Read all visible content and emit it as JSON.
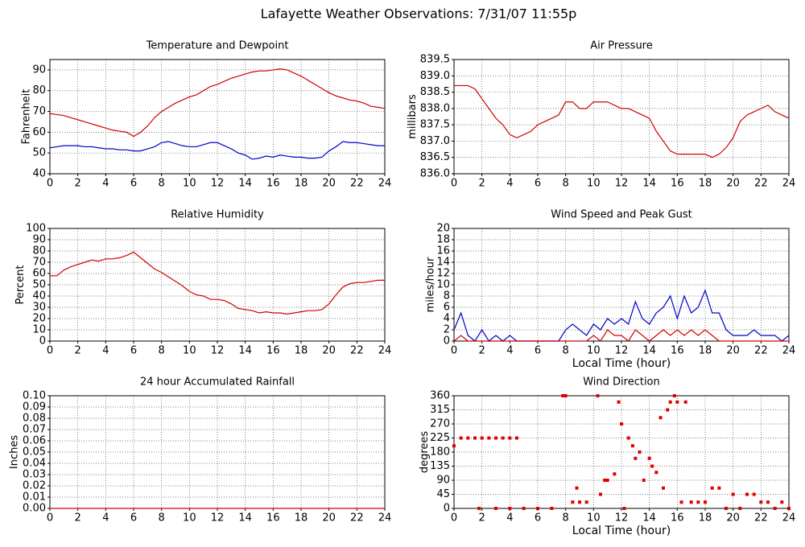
{
  "title": "Lafayette Weather Observations: 7/31/07 11:55p",
  "chart_data": [
    {
      "type": "line",
      "title": "Temperature and Dewpoint",
      "y_label": "Fahrenheit",
      "grid": true,
      "x": [
        0,
        0.5,
        1,
        1.5,
        2,
        2.5,
        3,
        3.5,
        4,
        4.5,
        5,
        5.5,
        6,
        6.5,
        7,
        7.5,
        8,
        8.5,
        9,
        9.5,
        10,
        10.5,
        11,
        11.5,
        12,
        12.5,
        13,
        13.5,
        14,
        14.5,
        15,
        15.5,
        16,
        16.5,
        17,
        17.5,
        18,
        18.5,
        19,
        19.5,
        20,
        20.5,
        21,
        21.5,
        22,
        22.5,
        23,
        23.5,
        24
      ],
      "xlim": [
        0,
        24
      ],
      "xticks": [
        0,
        2,
        4,
        6,
        8,
        10,
        12,
        14,
        16,
        18,
        20,
        22,
        24
      ],
      "ylim": [
        40,
        95
      ],
      "yticks": [
        40,
        50,
        60,
        70,
        80,
        90
      ],
      "series": [
        {
          "color": "#d00000",
          "values": [
            69,
            68.5,
            68,
            67,
            66,
            65,
            64,
            63,
            62,
            61,
            60.5,
            60,
            58,
            60,
            63,
            67,
            70,
            72,
            74,
            75.5,
            77,
            78,
            80,
            82,
            83,
            84.5,
            86,
            87,
            88,
            89,
            89.5,
            89.5,
            90,
            90.5,
            90,
            88.5,
            87,
            85,
            83,
            81,
            79,
            77.5,
            76.5,
            75.5,
            75,
            74,
            72.5,
            72,
            71.5
          ]
        },
        {
          "color": "#0000c8",
          "values": [
            52.5,
            53,
            53.5,
            53.5,
            53.5,
            53,
            53,
            52.5,
            52,
            52,
            51.5,
            51.5,
            51,
            51,
            52,
            53,
            55,
            55.5,
            54.5,
            53.5,
            53,
            53,
            54,
            55,
            55,
            53.5,
            52,
            50,
            49,
            47,
            47.5,
            48.5,
            48,
            49,
            48.5,
            48,
            48,
            47.5,
            47.5,
            48,
            51,
            53,
            55.5,
            55,
            55,
            54.5,
            54,
            53.5,
            53.5
          ]
        }
      ]
    },
    {
      "type": "line",
      "title": "Air Pressure",
      "y_label": "millibars",
      "grid": true,
      "x": [
        0,
        0.5,
        1,
        1.5,
        2,
        2.5,
        3,
        3.5,
        4,
        4.5,
        5,
        5.5,
        6,
        6.5,
        7,
        7.5,
        8,
        8.5,
        9,
        9.5,
        10,
        10.5,
        11,
        11.5,
        12,
        12.5,
        13,
        13.5,
        14,
        14.5,
        15,
        15.5,
        16,
        16.5,
        17,
        17.5,
        18,
        18.5,
        19,
        19.5,
        20,
        20.5,
        21,
        21.5,
        22,
        22.5,
        23,
        23.5,
        24
      ],
      "xlim": [
        0,
        24
      ],
      "xticks": [
        0,
        2,
        4,
        6,
        8,
        10,
        12,
        14,
        16,
        18,
        20,
        22,
        24
      ],
      "ylim": [
        836,
        839.5
      ],
      "yticks": [
        {
          "value": 836,
          "label": "836.0"
        },
        836.5,
        {
          "value": 837,
          "label": "837.0"
        },
        837.5,
        {
          "value": 838,
          "label": "838.0"
        },
        838.5,
        {
          "value": 839,
          "label": "839.0"
        },
        839.5
      ],
      "series": [
        {
          "color": "#d00000",
          "values": [
            838.7,
            838.7,
            838.7,
            838.6,
            838.3,
            838.0,
            837.7,
            837.5,
            837.2,
            837.1,
            837.2,
            837.3,
            837.5,
            837.6,
            837.7,
            837.8,
            838.2,
            838.2,
            838.0,
            838.0,
            838.2,
            838.2,
            838.2,
            838.1,
            838.0,
            838.0,
            837.9,
            837.8,
            837.7,
            837.3,
            837.0,
            836.7,
            836.6,
            836.6,
            836.6,
            836.6,
            836.6,
            836.5,
            836.6,
            836.8,
            837.1,
            837.6,
            837.8,
            837.9,
            838.0,
            838.1,
            837.9,
            837.8,
            837.7
          ]
        }
      ]
    },
    {
      "type": "line",
      "title": "Relative Humidity",
      "y_label": "Percent",
      "grid": true,
      "x": [
        0,
        0.5,
        1,
        1.5,
        2,
        2.5,
        3,
        3.5,
        4,
        4.5,
        5,
        5.5,
        6,
        6.5,
        7,
        7.5,
        8,
        8.5,
        9,
        9.5,
        10,
        10.5,
        11,
        11.5,
        12,
        12.5,
        13,
        13.5,
        14,
        14.5,
        15,
        15.5,
        16,
        16.5,
        17,
        17.5,
        18,
        18.5,
        19,
        19.5,
        20,
        20.5,
        21,
        21.5,
        22,
        22.5,
        23,
        23.5,
        24
      ],
      "xlim": [
        0,
        24
      ],
      "xticks": [
        0,
        2,
        4,
        6,
        8,
        10,
        12,
        14,
        16,
        18,
        20,
        22,
        24
      ],
      "ylim": [
        0,
        100
      ],
      "yticks": [
        0,
        10,
        20,
        30,
        40,
        50,
        60,
        70,
        80,
        90,
        100
      ],
      "series": [
        {
          "color": "#d00000",
          "values": [
            58,
            58,
            63,
            66,
            68,
            70,
            72,
            71,
            73,
            73,
            74,
            76,
            79,
            74,
            69,
            64,
            61,
            57,
            53,
            49,
            44,
            41,
            40,
            37,
            37,
            36,
            33,
            29,
            28,
            27,
            25,
            26,
            25,
            25,
            24,
            25,
            26,
            27,
            27,
            28,
            33,
            41,
            48,
            51,
            52,
            52,
            53,
            54,
            54
          ]
        }
      ]
    },
    {
      "type": "line",
      "title": "Wind Speed and Peak Gust",
      "y_label": "miles/hour",
      "x_label": "Local Time (hour)",
      "grid": true,
      "x": [
        0,
        0.5,
        1,
        1.5,
        2,
        2.5,
        3,
        3.5,
        4,
        4.5,
        5,
        5.5,
        6,
        6.5,
        7,
        7.5,
        8,
        8.5,
        9,
        9.5,
        10,
        10.5,
        11,
        11.5,
        12,
        12.5,
        13,
        13.5,
        14,
        14.5,
        15,
        15.5,
        16,
        16.5,
        17,
        17.5,
        18,
        18.5,
        19,
        19.5,
        20,
        20.5,
        21,
        21.5,
        22,
        22.5,
        23,
        23.5,
        24
      ],
      "xlim": [
        0,
        24
      ],
      "xticks": [
        0,
        2,
        4,
        6,
        8,
        10,
        12,
        14,
        16,
        18,
        20,
        22,
        24
      ],
      "ylim": [
        0,
        20
      ],
      "yticks": [
        0,
        2,
        4,
        6,
        8,
        10,
        12,
        14,
        16,
        18,
        20
      ],
      "series": [
        {
          "color": "#0000c8",
          "values": [
            2,
            5,
            1,
            0,
            2,
            0,
            1,
            0,
            1,
            0,
            0,
            0,
            0,
            0,
            0,
            0,
            2,
            3,
            2,
            1,
            3,
            2,
            4,
            3,
            4,
            3,
            7,
            4,
            3,
            5,
            6,
            8,
            4,
            8,
            5,
            6,
            9,
            5,
            5,
            2,
            1,
            1,
            1,
            2,
            1,
            1,
            1,
            0,
            1
          ]
        },
        {
          "color": "#d00000",
          "values": [
            0,
            1,
            0,
            0,
            0,
            0,
            0,
            0,
            0,
            0,
            0,
            0,
            0,
            0,
            0,
            0,
            0,
            0,
            0,
            0,
            1,
            0,
            2,
            1,
            1,
            0,
            2,
            1,
            0,
            1,
            2,
            1,
            2,
            1,
            2,
            1,
            2,
            1,
            0,
            0,
            0,
            0,
            0,
            0,
            0,
            0,
            0,
            0,
            0
          ]
        }
      ]
    },
    {
      "type": "line",
      "title": "24 hour Accumulated Rainfall",
      "y_label": "Inches",
      "grid": true,
      "x": [
        0,
        24
      ],
      "xlim": [
        0,
        24
      ],
      "xticks": [
        0,
        2,
        4,
        6,
        8,
        10,
        12,
        14,
        16,
        18,
        20,
        22,
        24
      ],
      "ylim": [
        0,
        0.1
      ],
      "yticks": [
        {
          "value": 0,
          "label": "0.00"
        },
        {
          "value": 0.01,
          "label": "0.01"
        },
        {
          "value": 0.02,
          "label": "0.02"
        },
        {
          "value": 0.03,
          "label": "0.03"
        },
        {
          "value": 0.04,
          "label": "0.04"
        },
        {
          "value": 0.05,
          "label": "0.05"
        },
        {
          "value": 0.06,
          "label": "0.06"
        },
        {
          "value": 0.07,
          "label": "0.07"
        },
        {
          "value": 0.08,
          "label": "0.08"
        },
        {
          "value": 0.09,
          "label": "0.09"
        },
        {
          "value": 0.1,
          "label": "0.10"
        }
      ],
      "series": [
        {
          "color": "#d00000",
          "values": [
            0,
            0
          ]
        }
      ]
    },
    {
      "type": "scatter",
      "title": "Wind Direction",
      "y_label": "degrees",
      "x_label": "Local Time (hour)",
      "grid": true,
      "x": [
        0,
        0.5,
        1,
        1.5,
        2,
        2.5,
        3,
        3.5,
        4,
        4.5,
        1.8,
        3,
        4,
        5,
        6,
        7,
        7.8,
        8,
        8.5,
        8.8,
        9,
        9.5,
        10.3,
        10.5,
        10.8,
        11,
        11.5,
        11.8,
        12,
        12.2,
        12.5,
        12.8,
        13,
        13.3,
        13.6,
        14,
        14.2,
        14.5,
        14.8,
        15,
        15.3,
        15.5,
        15.8,
        16,
        16.3,
        16.6,
        17,
        17.5,
        18,
        18.5,
        19,
        19.5,
        20,
        20.5,
        21,
        21.5,
        22,
        22.5,
        23,
        23.5,
        24
      ],
      "xlim": [
        0,
        24
      ],
      "xticks": [
        0,
        2,
        4,
        6,
        8,
        10,
        12,
        14,
        16,
        18,
        20,
        22,
        24
      ],
      "ylim": [
        0,
        360
      ],
      "yticks": [
        0,
        45,
        90,
        135,
        180,
        225,
        270,
        315,
        360
      ],
      "series": [
        {
          "color": "#e00000",
          "values": [
            200,
            225,
            225,
            225,
            225,
            225,
            225,
            225,
            225,
            225,
            0,
            0,
            0,
            0,
            0,
            0,
            360,
            360,
            20,
            65,
            20,
            20,
            360,
            45,
            90,
            90,
            110,
            340,
            270,
            0,
            225,
            200,
            160,
            180,
            90,
            160,
            135,
            115,
            290,
            65,
            315,
            340,
            360,
            340,
            20,
            340,
            20,
            20,
            20,
            65,
            65,
            0,
            45,
            0,
            45,
            45,
            20,
            20,
            0,
            20,
            0
          ]
        }
      ]
    }
  ]
}
